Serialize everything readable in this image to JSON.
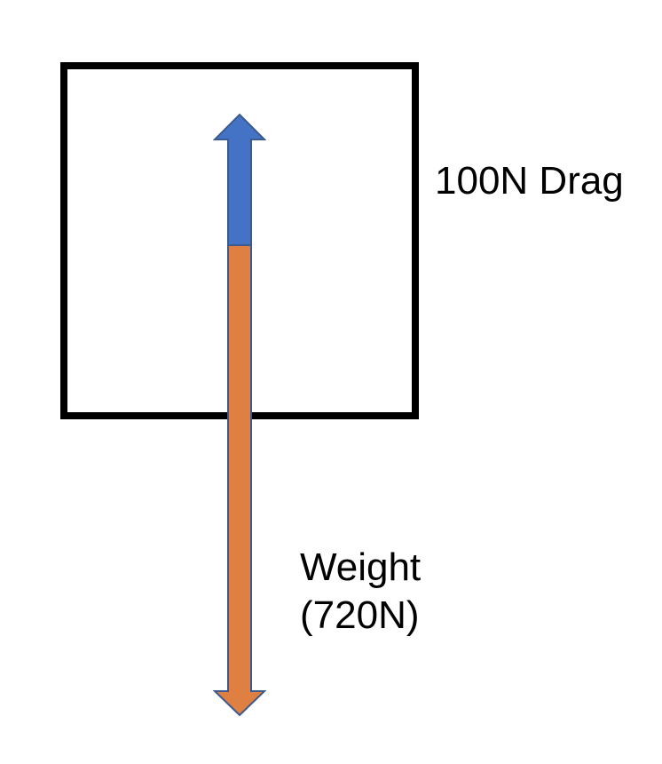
{
  "diagram": {
    "drag_label": "100N Drag",
    "weight_label_line1": "Weight",
    "weight_label_line2": "(720N)",
    "forces": {
      "drag": {
        "magnitude": 100,
        "unit": "N",
        "direction": "up",
        "color": "#4472C4"
      },
      "weight": {
        "magnitude": 720,
        "unit": "N",
        "direction": "down",
        "color": "#E07F42"
      }
    },
    "object_outline_color": "#000000",
    "arrow_outline_color": "#3B5A8E"
  }
}
